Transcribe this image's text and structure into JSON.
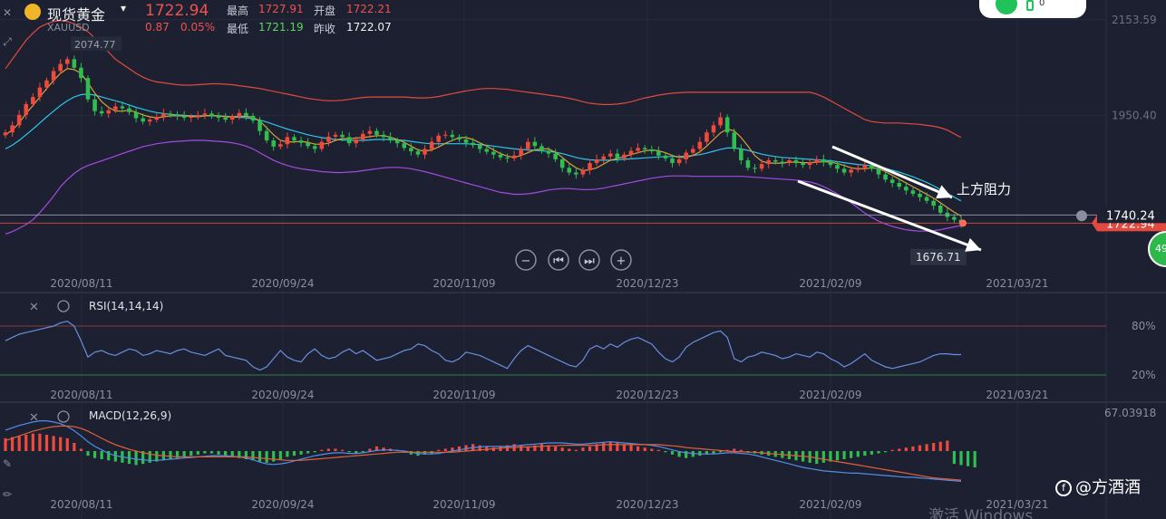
{
  "header": {
    "symbol_name": "现货黄金",
    "symbol_code": "XAUUSD",
    "price": "1722.94",
    "change": "0.87",
    "change_pct": "0.05%",
    "high_label": "最高",
    "high_value": "1727.91",
    "open_label": "开盘",
    "open_value": "1722.21",
    "low_label": "最低",
    "low_value": "1721.19",
    "prev_close_label": "昨收",
    "prev_close_value": "1722.07"
  },
  "widget": {
    "count": "0"
  },
  "badge": {
    "text": "49"
  },
  "watermark": {
    "text": "@方酒酒",
    "logo": "f"
  },
  "activate_text": "激活 Windows",
  "chart_data": [
    {
      "type": "candlestick",
      "price_levels": [
        "2153.59",
        "1950.40"
      ],
      "current_price_tag": "1722.94",
      "resistance_tag": "1740.24",
      "max_label": "2074.77",
      "min_label": "1676.71",
      "annotation": "上方阻力",
      "x_tick_labels": [
        "2020/08/11",
        "2020/09/24",
        "2020/11/09",
        "2020/12/23",
        "2021/02/09",
        "2021/03/21"
      ],
      "y_range": [
        1620,
        2180
      ],
      "close": [
        1915,
        1930,
        1952,
        1975,
        1990,
        2010,
        2025,
        2045,
        2060,
        2070,
        2052,
        2030,
        1985,
        1960,
        1955,
        1962,
        1970,
        1966,
        1958,
        1945,
        1938,
        1942,
        1948,
        1955,
        1952,
        1950,
        1946,
        1948,
        1952,
        1955,
        1950,
        1946,
        1942,
        1948,
        1956,
        1950,
        1940,
        1918,
        1898,
        1885,
        1890,
        1905,
        1898,
        1893,
        1886,
        1880,
        1895,
        1906,
        1910,
        1905,
        1892,
        1900,
        1912,
        1918,
        1910,
        1905,
        1898,
        1892,
        1882,
        1875,
        1868,
        1880,
        1895,
        1908,
        1910,
        1905,
        1900,
        1893,
        1888,
        1880,
        1874,
        1868,
        1862,
        1860,
        1866,
        1880,
        1895,
        1886,
        1876,
        1870,
        1858,
        1840,
        1830,
        1826,
        1835,
        1850,
        1858,
        1864,
        1870,
        1860,
        1868,
        1876,
        1882,
        1879,
        1875,
        1866,
        1860,
        1850,
        1858,
        1872,
        1880,
        1895,
        1915,
        1930,
        1947,
        1915,
        1880,
        1856,
        1840,
        1838,
        1848,
        1856,
        1853,
        1850,
        1856,
        1850,
        1846,
        1852,
        1858,
        1852,
        1846,
        1838,
        1830,
        1836,
        1840,
        1846,
        1838,
        1826,
        1815,
        1808,
        1800,
        1792,
        1785,
        1778,
        1770,
        1760,
        1745,
        1736,
        1730,
        1722
      ],
      "ma5": [
        1910,
        1920,
        1935,
        1955,
        1972,
        1990,
        2008,
        2025,
        2040,
        2050,
        2048,
        2040,
        2020,
        1998,
        1980,
        1968,
        1960,
        1960,
        1962,
        1958,
        1952,
        1948,
        1946,
        1948,
        1950,
        1950,
        1950,
        1949,
        1948,
        1950,
        1951,
        1950,
        1948,
        1948,
        1949,
        1949,
        1947,
        1939,
        1925,
        1910,
        1898,
        1895,
        1895,
        1896,
        1894,
        1890,
        1890,
        1892,
        1898,
        1902,
        1902,
        1903,
        1904,
        1906,
        1908,
        1908,
        1905,
        1900,
        1894,
        1886,
        1878,
        1875,
        1878,
        1884,
        1892,
        1898,
        1904,
        1904,
        1900,
        1893,
        1886,
        1878,
        1870,
        1865,
        1862,
        1866,
        1872,
        1878,
        1880,
        1880,
        1873,
        1862,
        1850,
        1840,
        1834,
        1836,
        1840,
        1848,
        1856,
        1860,
        1864,
        1868,
        1872,
        1876,
        1878,
        1876,
        1872,
        1866,
        1862,
        1862,
        1866,
        1874,
        1886,
        1900,
        1914,
        1922,
        1918,
        1904,
        1886,
        1866,
        1854,
        1850,
        1850,
        1850,
        1852,
        1852,
        1851,
        1851,
        1852,
        1853,
        1852,
        1849,
        1845,
        1840,
        1838,
        1838,
        1840,
        1838,
        1832,
        1824,
        1816,
        1808,
        1800,
        1792,
        1784,
        1776,
        1766,
        1756,
        1746,
        1738
      ],
      "ma20": [
        1880,
        1888,
        1898,
        1910,
        1922,
        1935,
        1948,
        1960,
        1972,
        1982,
        1990,
        1995,
        1996,
        1994,
        1990,
        1986,
        1982,
        1978,
        1973,
        1968,
        1964,
        1960,
        1957,
        1955,
        1953,
        1952,
        1951,
        1950,
        1950,
        1950,
        1950,
        1950,
        1949,
        1948,
        1947,
        1946,
        1944,
        1941,
        1937,
        1932,
        1927,
        1922,
        1918,
        1914,
        1910,
        1907,
        1904,
        1902,
        1900,
        1899,
        1898,
        1898,
        1898,
        1899,
        1900,
        1900,
        1900,
        1899,
        1898,
        1896,
        1894,
        1892,
        1891,
        1891,
        1891,
        1891,
        1891,
        1891,
        1890,
        1889,
        1888,
        1886,
        1884,
        1882,
        1880,
        1879,
        1878,
        1877,
        1876,
        1875,
        1873,
        1870,
        1866,
        1862,
        1859,
        1857,
        1856,
        1856,
        1856,
        1857,
        1858,
        1859,
        1860,
        1861,
        1862,
        1863,
        1864,
        1864,
        1864,
        1865,
        1866,
        1868,
        1871,
        1875,
        1879,
        1882,
        1882,
        1880,
        1877,
        1873,
        1869,
        1866,
        1864,
        1862,
        1861,
        1860,
        1859,
        1858,
        1857,
        1856,
        1855,
        1853,
        1851,
        1849,
        1847,
        1846,
        1844,
        1842,
        1839,
        1835,
        1831,
        1826,
        1821,
        1815,
        1809,
        1802,
        1794,
        1786,
        1778,
        1770
      ],
      "boll_upper": [
        2050,
        2070,
        2090,
        2110,
        2125,
        2138,
        2145,
        2150,
        2152,
        2150,
        2145,
        2138,
        2128,
        2115,
        2100,
        2085,
        2070,
        2060,
        2050,
        2040,
        2032,
        2026,
        2022,
        2020,
        2018,
        2016,
        2015,
        2015,
        2016,
        2017,
        2018,
        2018,
        2017,
        2016,
        2014,
        2012,
        2010,
        2008,
        2005,
        2002,
        1999,
        1996,
        1993,
        1990,
        1987,
        1985,
        1983,
        1982,
        1982,
        1983,
        1985,
        1987,
        1989,
        1990,
        1990,
        1990,
        1990,
        1990,
        1990,
        1989,
        1988,
        1988,
        1989,
        1991,
        1994,
        1997,
        2000,
        2003,
        2005,
        2007,
        2008,
        2008,
        2007,
        2006,
        2004,
        2002,
        2000,
        1998,
        1996,
        1994,
        1992,
        1990,
        1987,
        1984,
        1980,
        1977,
        1975,
        1974,
        1974,
        1975,
        1977,
        1980,
        1984,
        1988,
        1991,
        1994,
        1996,
        1998,
        1999,
        2000,
        2000,
        2000,
        2000,
        2000,
        2000,
        2000,
        2000,
        2000,
        2000,
        2000,
        2000,
        2000,
        2000,
        2000,
        2000,
        2000,
        2000,
        2000,
        1996,
        1990,
        1982,
        1974,
        1966,
        1958,
        1950,
        1942,
        1938,
        1936,
        1935,
        1935,
        1935,
        1934,
        1933,
        1932,
        1930,
        1928,
        1925,
        1920,
        1912,
        1904
      ],
      "boll_lower": [
        1700,
        1705,
        1712,
        1720,
        1730,
        1745,
        1762,
        1780,
        1800,
        1815,
        1828,
        1838,
        1845,
        1850,
        1855,
        1860,
        1865,
        1870,
        1875,
        1880,
        1885,
        1888,
        1891,
        1893,
        1895,
        1896,
        1897,
        1898,
        1898,
        1898,
        1897,
        1896,
        1895,
        1893,
        1890,
        1886,
        1880,
        1872,
        1864,
        1856,
        1850,
        1845,
        1841,
        1838,
        1836,
        1834,
        1832,
        1831,
        1830,
        1830,
        1831,
        1832,
        1834,
        1836,
        1838,
        1840,
        1841,
        1841,
        1840,
        1838,
        1835,
        1832,
        1828,
        1824,
        1820,
        1816,
        1812,
        1808,
        1804,
        1800,
        1796,
        1792,
        1788,
        1786,
        1784,
        1784,
        1785,
        1787,
        1790,
        1793,
        1795,
        1796,
        1796,
        1795,
        1794,
        1794,
        1795,
        1797,
        1800,
        1803,
        1806,
        1809,
        1812,
        1815,
        1818,
        1820,
        1822,
        1823,
        1823,
        1823,
        1822,
        1822,
        1822,
        1822,
        1822,
        1822,
        1822,
        1822,
        1821,
        1820,
        1819,
        1818,
        1817,
        1816,
        1815,
        1814,
        1812,
        1810,
        1806,
        1800,
        1793,
        1785,
        1776,
        1766,
        1755,
        1744,
        1735,
        1727,
        1721,
        1716,
        1712,
        1709,
        1707,
        1706,
        1706,
        1707,
        1709,
        1712,
        1715,
        1718
      ]
    },
    {
      "type": "line",
      "name": "RSI(14,14,14)",
      "y_tick_labels": [
        "80%",
        "20%"
      ],
      "x_tick_labels": [
        "2020/08/11",
        "2020/09/24",
        "2020/11/09",
        "2020/12/23",
        "2021/02/09",
        "2021/03/21"
      ],
      "ylim": [
        0,
        100
      ],
      "values": [
        62,
        66,
        70,
        72,
        74,
        76,
        78,
        80,
        84,
        86,
        80,
        62,
        42,
        48,
        50,
        46,
        44,
        48,
        52,
        50,
        44,
        46,
        50,
        48,
        46,
        50,
        52,
        48,
        46,
        44,
        48,
        52,
        44,
        42,
        40,
        38,
        30,
        26,
        30,
        40,
        50,
        42,
        38,
        36,
        46,
        52,
        44,
        40,
        42,
        48,
        52,
        46,
        50,
        44,
        38,
        40,
        42,
        46,
        50,
        52,
        58,
        56,
        50,
        46,
        38,
        36,
        40,
        48,
        46,
        44,
        40,
        36,
        32,
        28,
        40,
        50,
        56,
        52,
        48,
        44,
        40,
        36,
        32,
        30,
        38,
        52,
        56,
        52,
        58,
        54,
        60,
        64,
        66,
        62,
        58,
        48,
        40,
        36,
        42,
        54,
        60,
        64,
        68,
        72,
        74,
        66,
        40,
        36,
        42,
        44,
        48,
        46,
        44,
        40,
        42,
        46,
        44,
        42,
        48,
        46,
        40,
        36,
        30,
        34,
        40,
        46,
        38,
        34,
        30,
        28,
        30,
        32,
        34,
        36,
        40,
        44,
        46,
        46,
        45,
        45
      ]
    },
    {
      "type": "bar",
      "name": "MACD(12,26,9)",
      "y_tick_labels": [
        "67.03918"
      ],
      "x_tick_labels": [
        "2020/08/11",
        "2020/09/24",
        "2020/11/09",
        "2020/12/23",
        "2021/02/09",
        "2021/03/21"
      ],
      "ylim": [
        -70,
        70
      ],
      "histogram": [
        22,
        24,
        26,
        28,
        30,
        30,
        28,
        26,
        24,
        22,
        14,
        4,
        -8,
        -12,
        -14,
        -16,
        -18,
        -20,
        -22,
        -24,
        -22,
        -20,
        -18,
        -16,
        -14,
        -12,
        -10,
        -8,
        -6,
        -4,
        -4,
        -6,
        -8,
        -10,
        -12,
        -14,
        -16,
        -18,
        -20,
        -18,
        -14,
        -10,
        -8,
        -6,
        -4,
        -2,
        2,
        4,
        4,
        2,
        -2,
        -4,
        -2,
        4,
        8,
        6,
        4,
        2,
        -2,
        -6,
        -8,
        -6,
        -4,
        2,
        4,
        6,
        8,
        10,
        12,
        10,
        8,
        6,
        8,
        10,
        12,
        10,
        8,
        10,
        12,
        10,
        8,
        6,
        4,
        2,
        6,
        8,
        12,
        14,
        16,
        14,
        12,
        10,
        8,
        6,
        4,
        2,
        -2,
        -6,
        -10,
        -12,
        -10,
        -8,
        -6,
        -4,
        -2,
        2,
        4,
        2,
        -2,
        -4,
        -6,
        -8,
        -10,
        -12,
        -14,
        -16,
        -18,
        -20,
        -22,
        -20,
        -18,
        -16,
        -14,
        -12,
        -10,
        -8,
        -6,
        -4,
        -2,
        2,
        4,
        6,
        8,
        10,
        12,
        14,
        16,
        18,
        -22,
        -24,
        -26,
        -28
      ],
      "dif": [
        36,
        40,
        44,
        47,
        50,
        52,
        52,
        50,
        47,
        42,
        35,
        26,
        16,
        8,
        2,
        -4,
        -8,
        -10,
        -12,
        -14,
        -15,
        -16,
        -16,
        -15,
        -14,
        -13,
        -12,
        -11,
        -10,
        -9,
        -8,
        -8,
        -8,
        -9,
        -10,
        -12,
        -15,
        -19,
        -22,
        -23,
        -22,
        -20,
        -17,
        -14,
        -11,
        -8,
        -6,
        -4,
        -3,
        -3,
        -4,
        -4,
        -3,
        -1,
        1,
        2,
        2,
        1,
        0,
        -2,
        -4,
        -5,
        -5,
        -4,
        -2,
        0,
        2,
        4,
        6,
        7,
        8,
        8,
        8,
        8,
        9,
        10,
        11,
        12,
        13,
        14,
        14,
        14,
        13,
        12,
        12,
        13,
        14,
        15,
        16,
        15,
        14,
        13,
        12,
        11,
        10,
        8,
        5,
        2,
        -1,
        -3,
        -4,
        -5,
        -5,
        -5,
        -4,
        -3,
        -3,
        -4,
        -5,
        -7,
        -10,
        -13,
        -16,
        -19,
        -22,
        -25,
        -28,
        -30,
        -32,
        -34,
        -35,
        -36,
        -37,
        -38,
        -38,
        -39,
        -40,
        -41,
        -42,
        -43,
        -44,
        -45,
        -45,
        -46,
        -47,
        -48,
        -49,
        -50,
        -51,
        -52
      ],
      "dea": [
        18,
        22,
        26,
        30,
        34,
        37,
        40,
        42,
        43,
        43,
        42,
        39,
        34,
        28,
        22,
        16,
        11,
        7,
        3,
        0,
        -3,
        -5,
        -7,
        -8,
        -9,
        -10,
        -10,
        -10,
        -10,
        -10,
        -10,
        -10,
        -10,
        -10,
        -10,
        -10,
        -11,
        -12,
        -13,
        -14,
        -15,
        -16,
        -16,
        -16,
        -15,
        -14,
        -13,
        -12,
        -11,
        -10,
        -9,
        -8,
        -7,
        -6,
        -5,
        -4,
        -3,
        -2,
        -2,
        -2,
        -2,
        -2,
        -2,
        -2,
        -2,
        -2,
        -1,
        0,
        1,
        2,
        3,
        4,
        5,
        6,
        6,
        7,
        7,
        8,
        8,
        9,
        9,
        10,
        10,
        10,
        10,
        10,
        10,
        11,
        11,
        11,
        11,
        11,
        11,
        11,
        11,
        11,
        10,
        9,
        8,
        6,
        5,
        4,
        3,
        2,
        1,
        0,
        -1,
        -1,
        -2,
        -2,
        -3,
        -4,
        -5,
        -6,
        -7,
        -8,
        -9,
        -10,
        -12,
        -14,
        -16,
        -18,
        -20,
        -22,
        -24,
        -26,
        -28,
        -30,
        -32,
        -34,
        -36,
        -38,
        -40,
        -42,
        -44,
        -46,
        -47,
        -48,
        -49,
        -50
      ]
    }
  ]
}
